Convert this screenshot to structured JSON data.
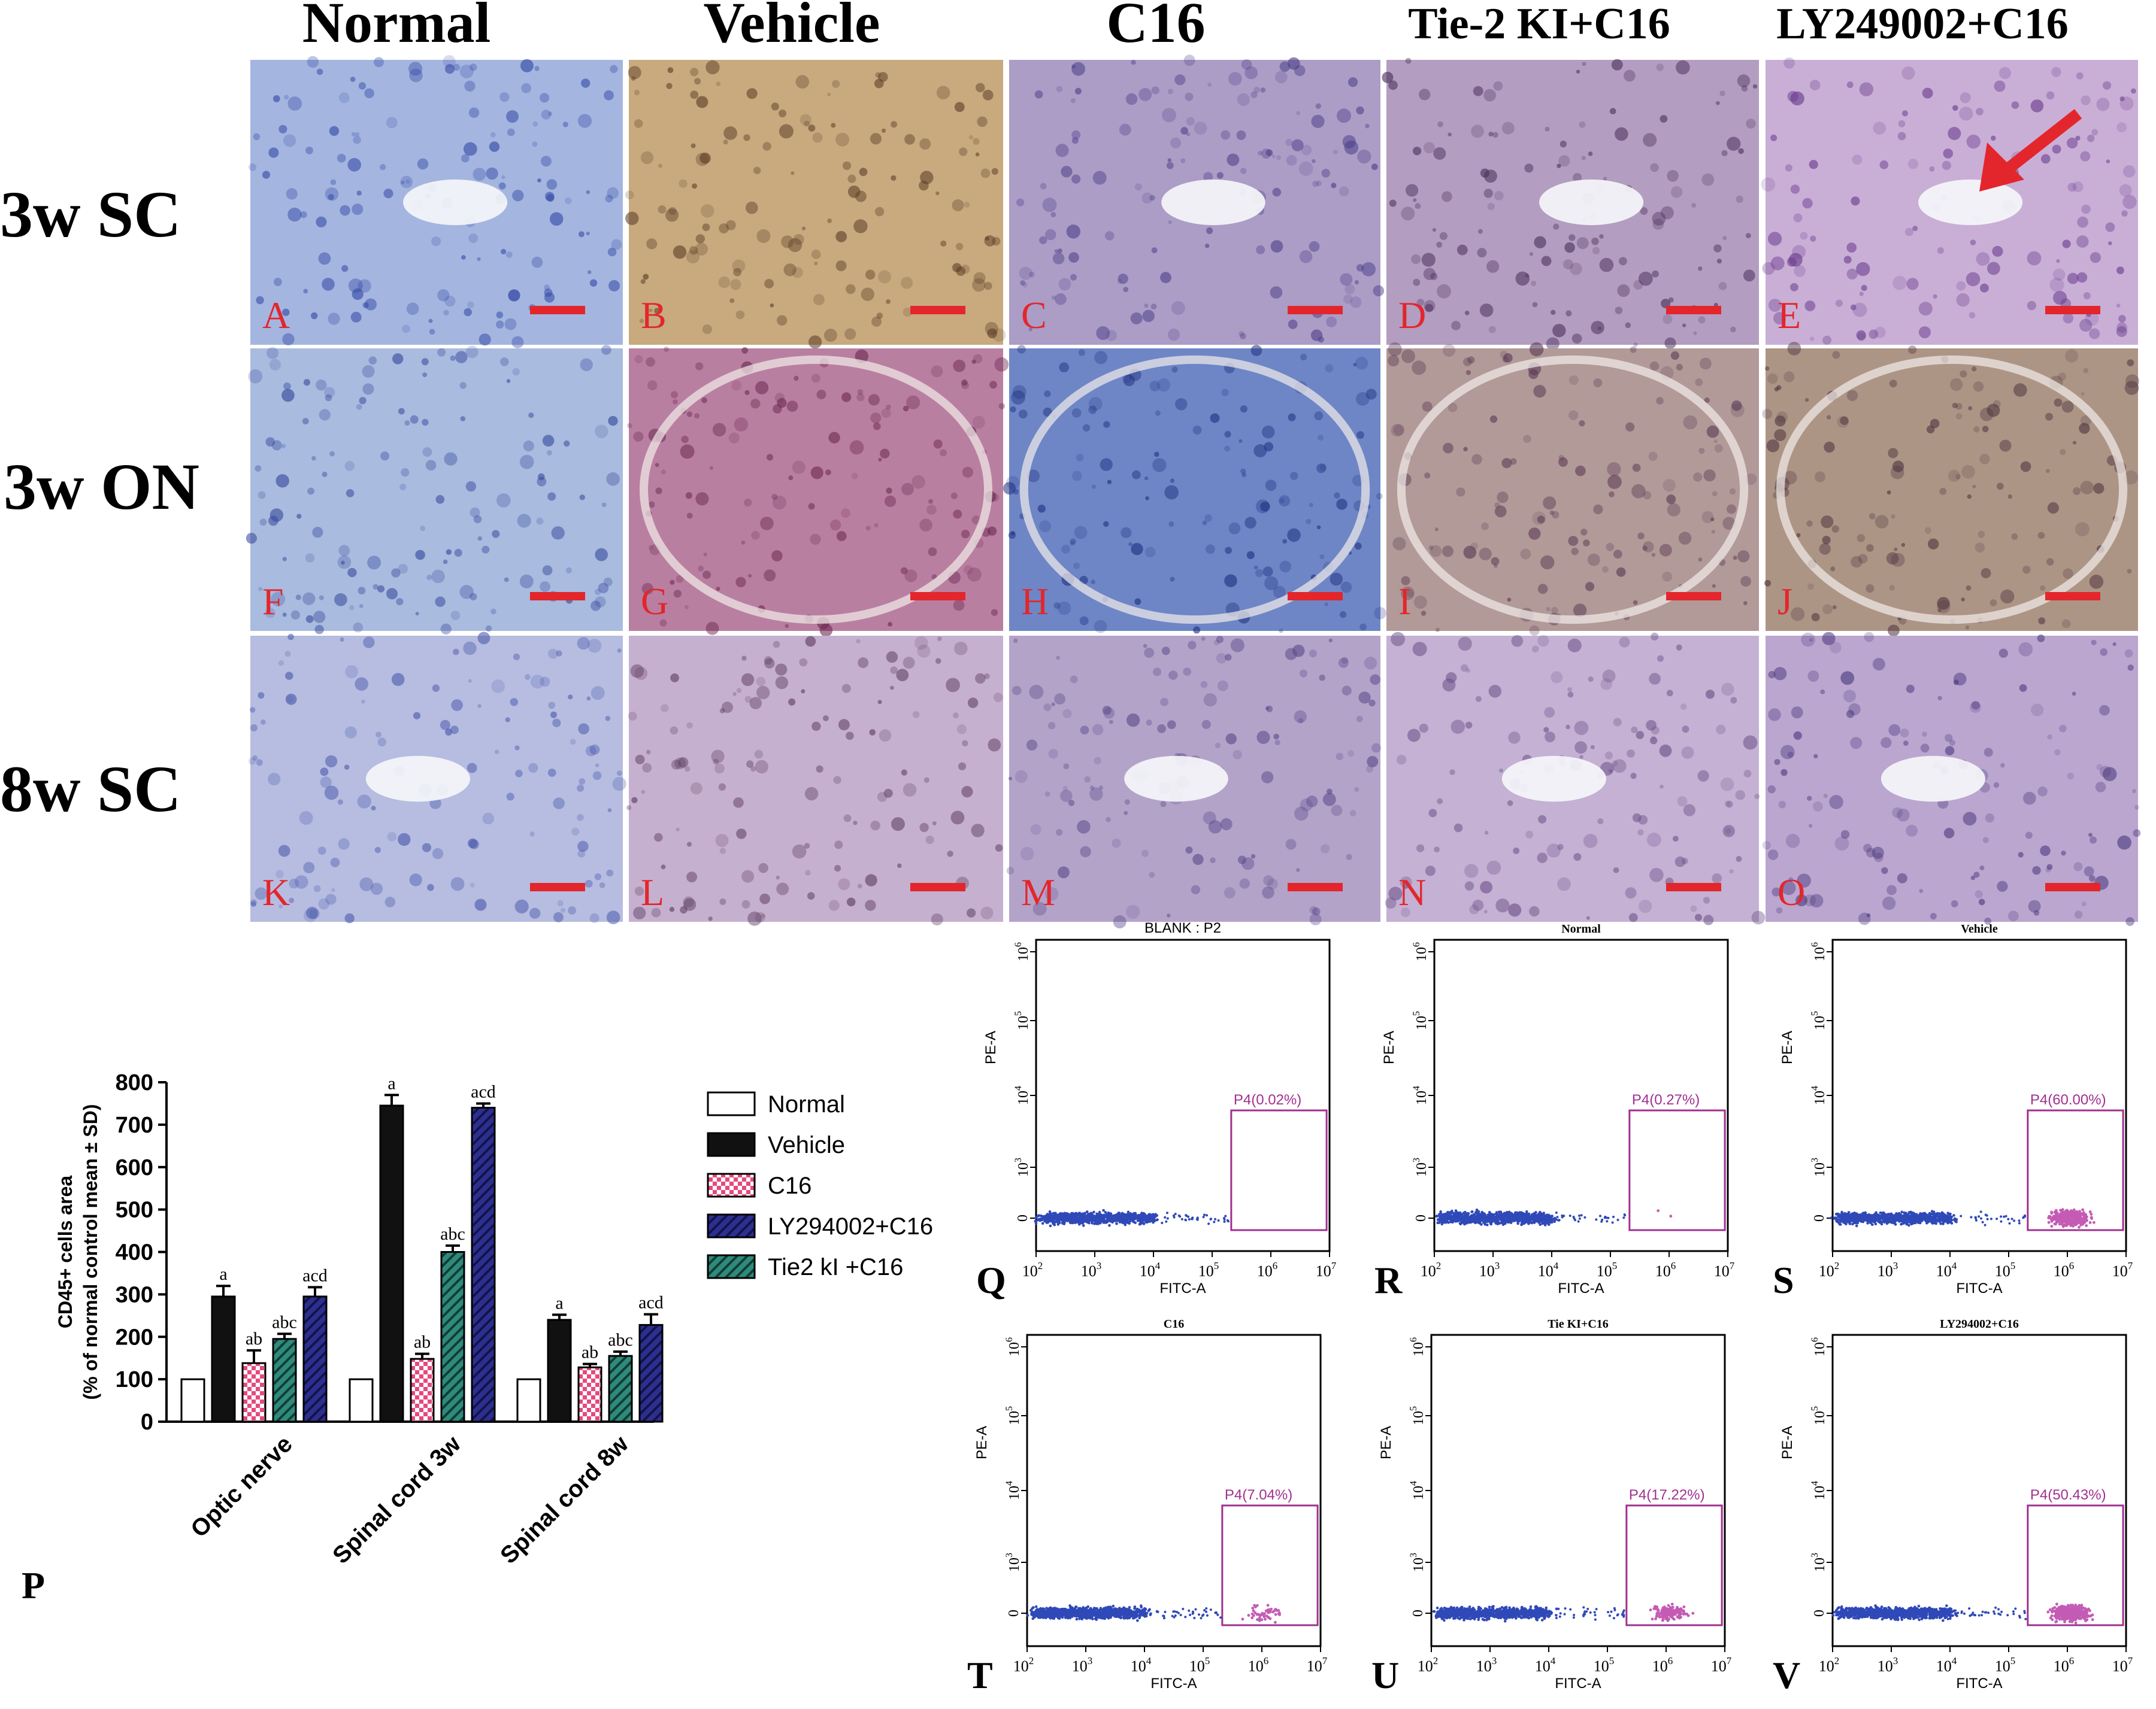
{
  "colors": {
    "scale_bar": "#e3262c",
    "panel_letter": "#e3262c",
    "arrow": "#e3262c",
    "dot_negative": "#2f49b8",
    "dot_positive": "#c45bb5",
    "gate": "#a0308f"
  },
  "micrograph": {
    "column_headers": [
      "Normal",
      "Vehicle",
      "C16",
      "Tie-2 KI+C16",
      "LY249002+C16"
    ],
    "row_labels": [
      "3w SC",
      "3w ON",
      "8w SC"
    ],
    "panel_letters": [
      [
        "A",
        "B",
        "C",
        "D",
        "E"
      ],
      [
        "F",
        "G",
        "H",
        "I",
        "J"
      ],
      [
        "K",
        "L",
        "M",
        "N",
        "O"
      ]
    ],
    "stain_tones": [
      [
        {
          "base": "#a4b6df",
          "cells": "#3347a6"
        },
        {
          "base": "#c8aa7e",
          "cells": "#5a3b26"
        },
        {
          "base": "#ab9dc6",
          "cells": "#4d3f88"
        },
        {
          "base": "#b39dc0",
          "cells": "#4a2f5c"
        },
        {
          "base": "#c9afd6",
          "cells": "#6a3c8e"
        }
      ],
      [
        {
          "base": "#a9bbde",
          "cells": "#34479c"
        },
        {
          "base": "#b97fa1",
          "cells": "#6d2a52"
        },
        {
          "base": "#6e86c6",
          "cells": "#1f2f80"
        },
        {
          "base": "#b29a98",
          "cells": "#5b3b55"
        },
        {
          "base": "#ad9586",
          "cells": "#4f3640"
        }
      ],
      [
        {
          "base": "#b6bde0",
          "cells": "#4a59ac"
        },
        {
          "base": "#c6b0cf",
          "cells": "#5a3a5e"
        },
        {
          "base": "#b4a3c9",
          "cells": "#5a4a8a"
        },
        {
          "base": "#c4b1d3",
          "cells": "#6a4d86"
        },
        {
          "base": "#bba6cf",
          "cells": "#4b3a7e"
        }
      ]
    ]
  },
  "bar_panel": {
    "letter": "P",
    "legend_items": [
      "Normal",
      "Vehicle",
      "C16",
      "LY294002+C16",
      "Tie2 kI +C16"
    ]
  },
  "chart_data": [
    {
      "type": "bar",
      "panel": "P",
      "categories": [
        "Optic nerve",
        "Spinal cord 3w",
        "Spinal cord 8w"
      ],
      "ylabel": "CD45+ cells area (% of normal control mean ± SD)",
      "ylabel_lines": [
        "CD45+ cells area",
        "(% of normal control mean ± SD)"
      ],
      "ylim": [
        0,
        800
      ],
      "yticks": [
        0,
        100,
        200,
        300,
        400,
        500,
        600,
        700,
        800
      ],
      "legend_position": "right",
      "series": [
        {
          "name": "Normal",
          "values": [
            100,
            100,
            100
          ],
          "errors": [
            0,
            0,
            0
          ],
          "labels": [
            "",
            "",
            ""
          ],
          "fill": "#ffffff",
          "pattern": "none"
        },
        {
          "name": "Vehicle",
          "values": [
            295,
            745,
            240
          ],
          "errors": [
            25,
            25,
            12
          ],
          "labels": [
            "a",
            "a",
            "a"
          ],
          "fill": "#111111",
          "pattern": "none"
        },
        {
          "name": "C16",
          "values": [
            138,
            148,
            128
          ],
          "errors": [
            30,
            12,
            8
          ],
          "labels": [
            "ab",
            "ab",
            "ab"
          ],
          "fill": "#e5497e",
          "pattern": "checker"
        },
        {
          "name": "Tie2 kI +C16",
          "values": [
            195,
            400,
            155
          ],
          "errors": [
            12,
            15,
            10
          ],
          "labels": [
            "abc",
            "abc",
            "abc"
          ],
          "fill": "#2f8a7b",
          "pattern": "hatch"
        },
        {
          "name": "LY294002+C16",
          "values": [
            295,
            740,
            228
          ],
          "errors": [
            22,
            10,
            25
          ],
          "labels": [
            "acd",
            "acd",
            "acd"
          ],
          "fill": "#2d2f8f",
          "pattern": "hatch"
        }
      ]
    },
    {
      "type": "scatter",
      "panel": "Q",
      "title": "BLANK : P2",
      "xlabel": "FITC-A",
      "ylabel": "PE-A",
      "x_tick_exponents": [
        "2",
        "3",
        "4",
        "5",
        "6",
        "7"
      ],
      "y_tick_exponents": [
        "0",
        "3",
        "4",
        "5",
        "6"
      ],
      "gate_label": "P4(0.02%)",
      "gate_percent": 0.02
    },
    {
      "type": "scatter",
      "panel": "R",
      "title": "Normal",
      "xlabel": "FITC-A",
      "ylabel": "PE-A",
      "x_tick_exponents": [
        "2",
        "3",
        "4",
        "5",
        "6",
        "7"
      ],
      "y_tick_exponents": [
        "0",
        "3",
        "4",
        "5",
        "6"
      ],
      "gate_label": "P4(0.27%)",
      "gate_percent": 0.27
    },
    {
      "type": "scatter",
      "panel": "S",
      "title": "Vehicle",
      "xlabel": "FITC-A",
      "ylabel": "PE-A",
      "x_tick_exponents": [
        "2",
        "3",
        "4",
        "5",
        "6",
        "7"
      ],
      "y_tick_exponents": [
        "0",
        "3",
        "4",
        "5",
        "6"
      ],
      "gate_label": "P4(60.00%)",
      "gate_percent": 60.0
    },
    {
      "type": "scatter",
      "panel": "T",
      "title": "C16",
      "xlabel": "FITC-A",
      "ylabel": "PE-A",
      "x_tick_exponents": [
        "2",
        "3",
        "4",
        "5",
        "6",
        "7"
      ],
      "y_tick_exponents": [
        "0",
        "3",
        "4",
        "5",
        "6"
      ],
      "gate_label": "P4(7.04%)",
      "gate_percent": 7.04
    },
    {
      "type": "scatter",
      "panel": "U",
      "title": "Tie KI+C16",
      "xlabel": "FITC-A",
      "ylabel": "PE-A",
      "x_tick_exponents": [
        "2",
        "3",
        "4",
        "5",
        "6",
        "7"
      ],
      "y_tick_exponents": [
        "0",
        "3",
        "4",
        "5",
        "6"
      ],
      "gate_label": "P4(17.22%)",
      "gate_percent": 17.22
    },
    {
      "type": "scatter",
      "panel": "V",
      "title": "LY294002+C16",
      "xlabel": "FITC-A",
      "ylabel": "PE-A",
      "x_tick_exponents": [
        "2",
        "3",
        "4",
        "5",
        "6",
        "7"
      ],
      "y_tick_exponents": [
        "0",
        "3",
        "4",
        "5",
        "6"
      ],
      "gate_label": "P4(50.43%)",
      "gate_percent": 50.43
    }
  ]
}
